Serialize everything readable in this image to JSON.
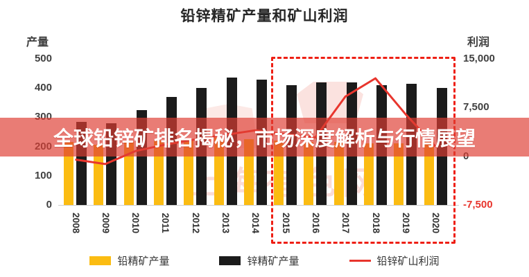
{
  "title": "铅锌精矿产量和矿山利润",
  "overlay_banner": {
    "text": "全球铅锌矿排名揭秘，市场深度解析与行情展望",
    "bg_color": "#de3e34",
    "text_color": "#ffffff"
  },
  "watermark": {
    "text": "上海有色网"
  },
  "axes": {
    "left_title": "产量",
    "right_title": "利润",
    "left_ticks": [
      "500",
      "400",
      "300",
      "200",
      "100",
      "0"
    ],
    "right_ticks": [
      "15,000",
      "7,500",
      "0",
      "-7,500"
    ]
  },
  "legend": [
    {
      "label": "铅精矿产量",
      "color": "#fbbc12",
      "type": "bar"
    },
    {
      "label": "锌精矿产量",
      "color": "#1b1b1b",
      "type": "bar"
    },
    {
      "label": "铅锌矿山利润",
      "color": "#e8352d",
      "type": "line"
    }
  ],
  "chart_data": {
    "type": "bar",
    "title": "铅锌精矿产量和矿山利润",
    "categories": [
      "2008",
      "2009",
      "2010",
      "2011",
      "2012",
      "2013",
      "2014",
      "2015",
      "2016",
      "2017",
      "2018",
      "2019",
      "2020"
    ],
    "series": [
      {
        "name": "铅精矿产量",
        "type": "bar",
        "axis": "left",
        "color": "#fbbc12",
        "values": [
          215,
          205,
          215,
          220,
          225,
          230,
          225,
          220,
          215,
          215,
          210,
          210,
          215
        ]
      },
      {
        "name": "锌精矿产量",
        "type": "bar",
        "axis": "left",
        "color": "#1b1b1b",
        "values": [
          285,
          280,
          325,
          370,
          400,
          435,
          430,
          410,
          420,
          420,
          410,
          415,
          400
        ]
      },
      {
        "name": "铅锌矿山利润",
        "type": "line",
        "axis": "right",
        "color": "#e8352d",
        "values": [
          -500,
          -1200,
          800,
          1800,
          2600,
          3300,
          4000,
          3400,
          2900,
          9200,
          12000,
          6500,
          1500
        ]
      }
    ],
    "left_axis": {
      "label": "产量",
      "min": 0,
      "max": 500,
      "tick_step": 100
    },
    "right_axis": {
      "label": "利润",
      "min": -7500,
      "max": 15000,
      "tick_step": 7500
    },
    "highlight_box": {
      "from": "2015",
      "to": "2020",
      "style": "red-dashed"
    },
    "grid": false,
    "legend_position": "bottom"
  }
}
